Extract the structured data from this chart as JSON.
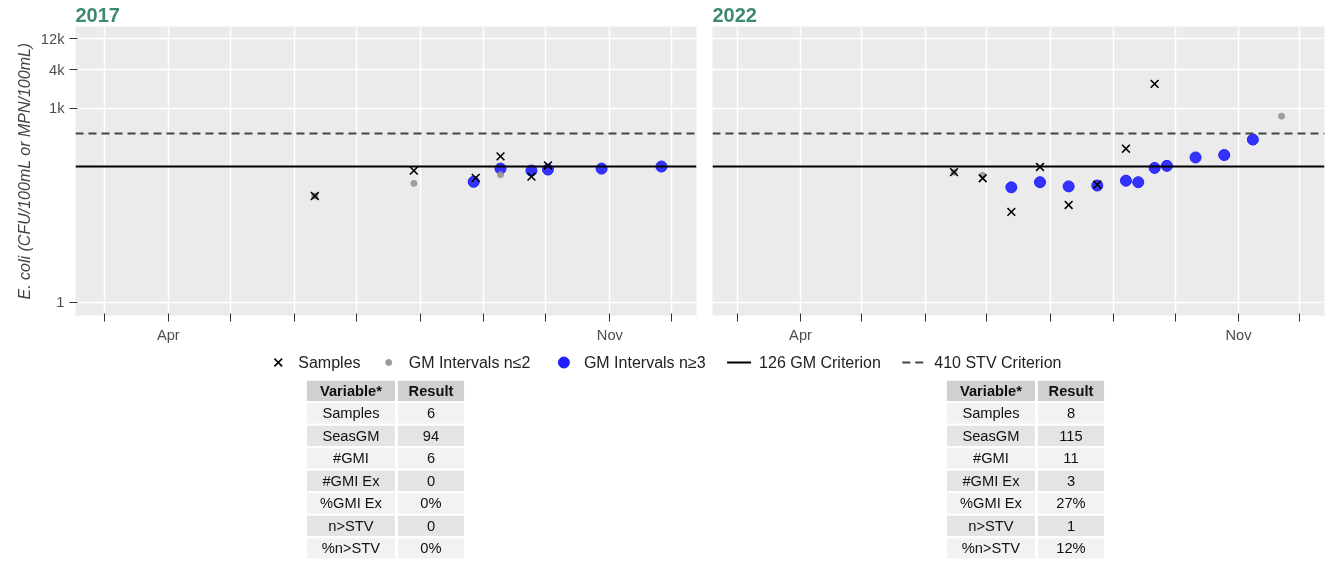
{
  "chart_data": [
    {
      "type": "scatter",
      "title": "2017",
      "ylabel": "E. coli (CFU/100mL or MPN/100mL)",
      "log": "y",
      "grid": true,
      "legend": "bottom",
      "xlim": [
        "2017-02-15",
        "2017-12-13"
      ],
      "xticks": [
        {
          "value": "2017-03-01",
          "label": null
        },
        {
          "value": "2017-04-01",
          "label": "Apr"
        },
        {
          "value": "2017-05-01",
          "label": null
        },
        {
          "value": "2017-06-01",
          "label": null
        },
        {
          "value": "2017-07-01",
          "label": null
        },
        {
          "value": "2017-08-01",
          "label": null
        },
        {
          "value": "2017-09-01",
          "label": null
        },
        {
          "value": "2017-10-01",
          "label": null
        },
        {
          "value": "2017-11-01",
          "label": "Nov"
        },
        {
          "value": "2017-12-01",
          "label": null
        }
      ],
      "ylim": [
        0.62,
        18600
      ],
      "yticks": [
        1,
        {
          "value": 1000,
          "label": "1k"
        },
        {
          "value": 4000,
          "label": "4k"
        },
        {
          "value": 12000,
          "label": "12k"
        }
      ],
      "series": [
        {
          "name": "Samples",
          "marker": "cross",
          "color": "#000000",
          "x": [
            "2017-06-11",
            "2017-07-29",
            "2017-08-28",
            "2017-09-09",
            "2017-09-24",
            "2017-10-02"
          ],
          "values": [
            44,
            109,
            84,
            181,
            88,
            131
          ]
        },
        {
          "name": "GM Intervals n≤2",
          "marker": "circle",
          "color": "#999999",
          "x": [
            "2017-06-11",
            "2017-07-29",
            "2017-09-09"
          ],
          "values": [
            44,
            69,
            94
          ]
        },
        {
          "name": "GM Intervals n≥3",
          "marker": "circle",
          "color": "#1f1fff",
          "x": [
            "2017-08-27",
            "2017-09-09",
            "2017-09-24",
            "2017-10-02",
            "2017-10-28",
            "2017-11-26"
          ],
          "values": [
            73,
            117,
            109,
            113,
            117,
            126
          ]
        }
      ],
      "ref_lines": [
        {
          "axis": "y",
          "value": 126,
          "label": "126 GM Criterion",
          "line_style": "solid",
          "color": "#000000"
        },
        {
          "axis": "y",
          "value": 410,
          "label": "410 STV Criterion",
          "line_style": "dashed",
          "color": "#444444"
        }
      ],
      "annotations": [
        "Variable*",
        "Result",
        "Samples",
        "6",
        "SeasGM",
        "94",
        "#GMI",
        "6",
        "#GMI Ex",
        "0",
        "%GMI Ex",
        "0%",
        "n>STV",
        "0",
        "%n>STV",
        "0%"
      ]
    },
    {
      "type": "scatter",
      "title": "2022",
      "log": "y",
      "grid": true,
      "tick_labels": "x",
      "xlim": [
        "2022-02-17",
        "2022-12-13"
      ],
      "xticks": [
        {
          "value": "2022-03-01",
          "label": null
        },
        {
          "value": "2022-04-01",
          "label": "Apr"
        },
        {
          "value": "2022-05-01",
          "label": null
        },
        {
          "value": "2022-06-01",
          "label": null
        },
        {
          "value": "2022-07-01",
          "label": null
        },
        {
          "value": "2022-08-01",
          "label": null
        },
        {
          "value": "2022-09-01",
          "label": null
        },
        {
          "value": "2022-10-01",
          "label": null
        },
        {
          "value": "2022-11-01",
          "label": "Nov"
        },
        {
          "value": "2022-12-01",
          "label": null
        }
      ],
      "ylim": [
        0.62,
        18600
      ],
      "yticks": [
        {
          "value": 1,
          "label": null
        },
        {
          "value": 1000,
          "label": null
        },
        {
          "value": 4000,
          "label": null
        },
        {
          "value": 12000,
          "label": null
        }
      ],
      "series": [
        {
          "marker": "cross",
          "color": "#000000",
          "x": [
            "2022-06-15",
            "2022-06-29",
            "2022-07-13",
            "2022-07-27",
            "2022-08-10",
            "2022-08-24",
            "2022-09-07",
            "2022-09-21"
          ],
          "values": [
            103,
            83,
            25,
            124,
            32,
            66,
            238,
            2400
          ]
        },
        {
          "marker": "circle",
          "color": "#999999",
          "x": [
            "2022-06-15",
            "2022-06-29",
            "2022-11-22"
          ],
          "values": [
            103,
            92,
            760
          ]
        },
        {
          "marker": "circle",
          "color": "#1f1fff",
          "x": [
            "2022-07-13",
            "2022-07-27",
            "2022-08-10",
            "2022-08-24",
            "2022-09-07",
            "2022-09-13",
            "2022-09-21",
            "2022-09-27",
            "2022-10-11",
            "2022-10-25",
            "2022-11-08"
          ],
          "values": [
            60,
            72,
            62,
            64,
            76,
            72,
            120,
            129,
            174,
            190,
            330
          ]
        }
      ],
      "ref_lines": [
        {
          "axis": "y",
          "value": 126,
          "line_style": "solid",
          "color": "#000000"
        },
        {
          "axis": "y",
          "value": 410,
          "line_style": "dashed",
          "color": "#444444"
        }
      ],
      "annotations": [
        "Variable*",
        "Result",
        "Samples",
        "8",
        "SeasGM",
        "115",
        "#GMI",
        "11",
        "#GMI Ex",
        "3",
        "%GMI Ex",
        "27%",
        "n>STV",
        "1",
        "%n>STV",
        "12%"
      ]
    }
  ]
}
